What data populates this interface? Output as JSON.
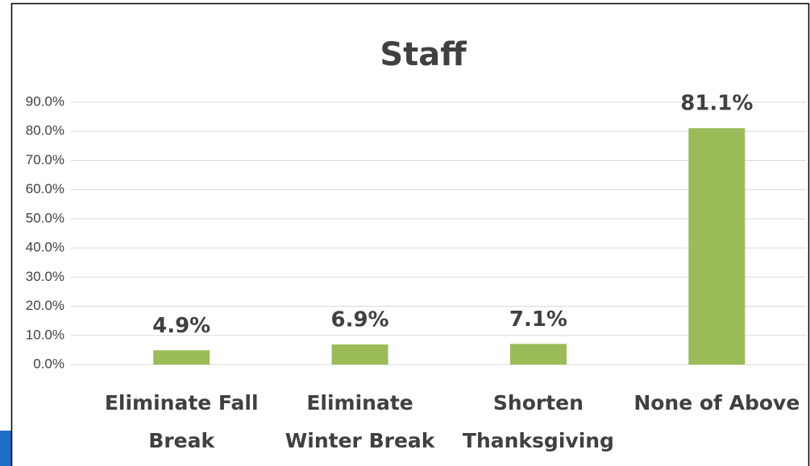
{
  "chart_data": {
    "type": "bar",
    "title": "Staff",
    "categories": [
      "Eliminate Fall Break",
      "Eliminate Winter Break",
      "Shorten Thanksgiving",
      "None of Above"
    ],
    "values": [
      4.9,
      6.9,
      7.1,
      81.1
    ],
    "value_labels": [
      "4.9%",
      "6.9%",
      "7.1%",
      "81.1%"
    ],
    "color": "#9bbb59",
    "ylim": [
      0,
      90
    ],
    "yticks": [
      {
        "value": 0,
        "label": "0.0%"
      },
      {
        "value": 10,
        "label": "10.0%"
      },
      {
        "value": 20,
        "label": "20.0%"
      },
      {
        "value": 30,
        "label": "30.0%"
      },
      {
        "value": 40,
        "label": "40.0%"
      },
      {
        "value": 50,
        "label": "50.0%"
      },
      {
        "value": 60,
        "label": "60.0%"
      },
      {
        "value": 70,
        "label": "70.0%"
      },
      {
        "value": 80,
        "label": "80.0%"
      },
      {
        "value": 90,
        "label": "90.0%"
      }
    ],
    "grid": true
  }
}
